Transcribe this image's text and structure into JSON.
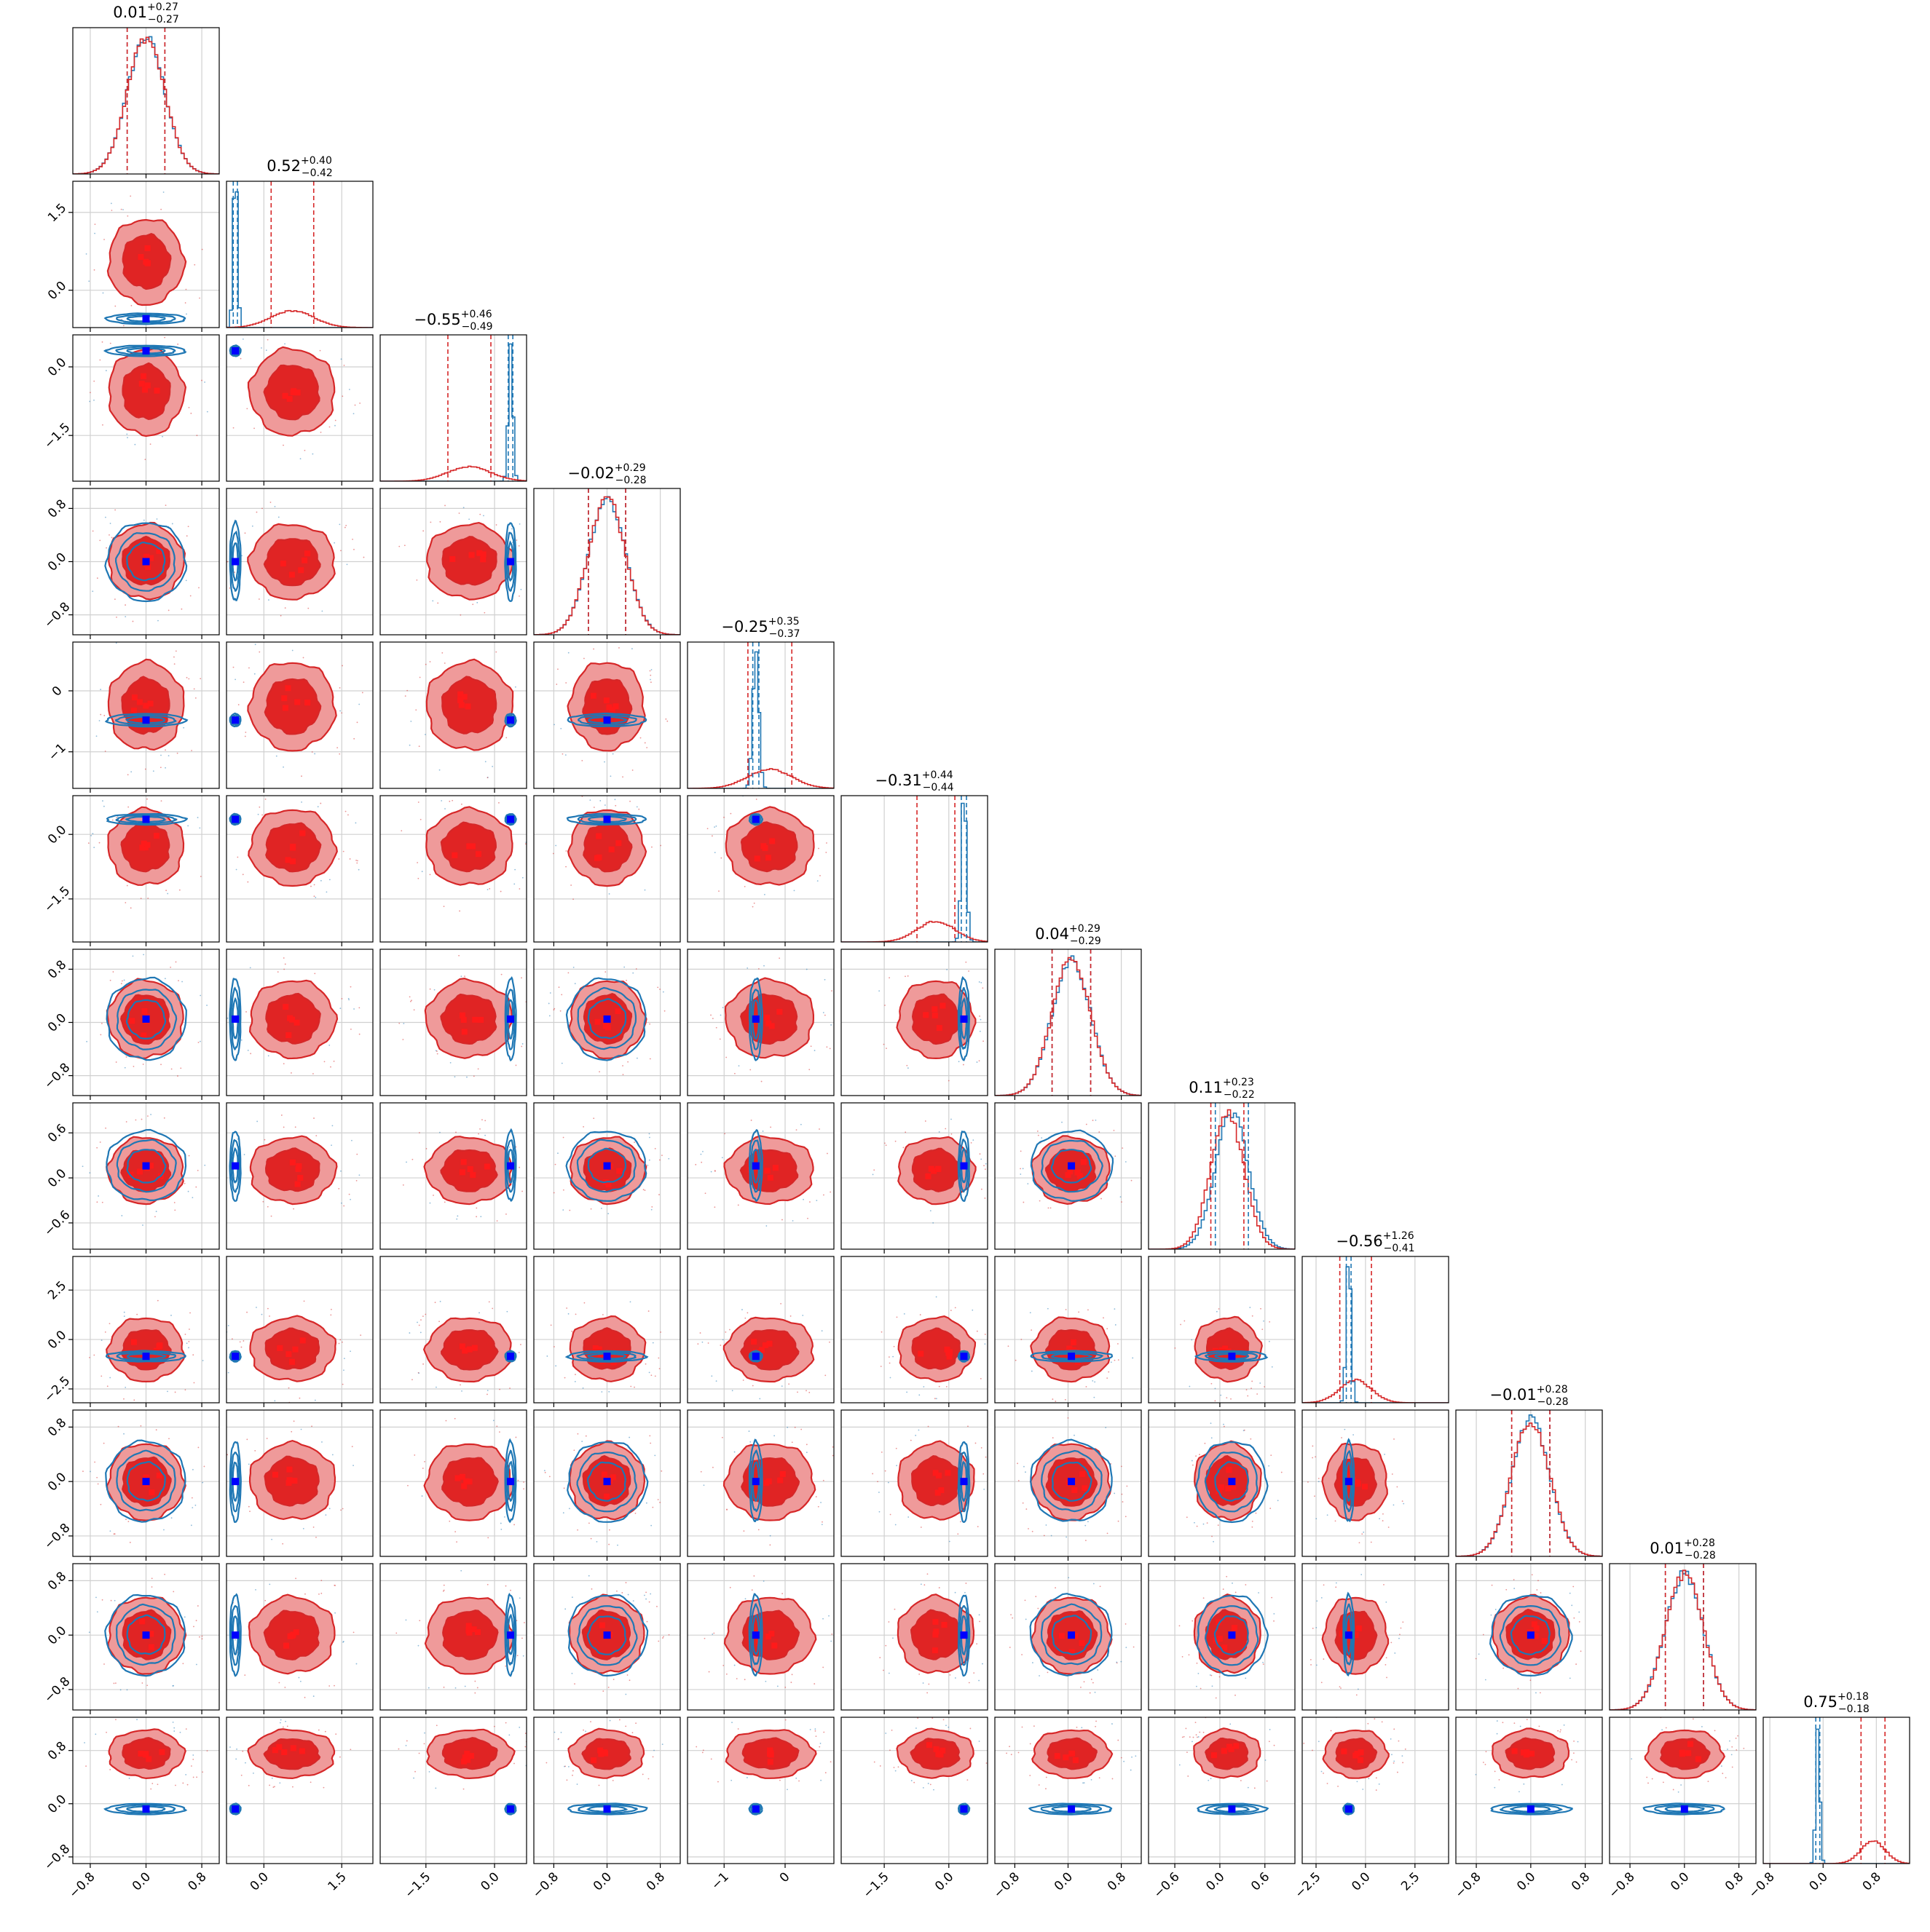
{
  "chart_data": {
    "type": "scatter",
    "subtype": "corner-plot",
    "n_params": 12,
    "colors": {
      "red": "#d62728",
      "red_fill_light": "#ef9a9a",
      "red_fill_dark": "#e02424",
      "blue": "#1f77b4",
      "truth_marker": "#0000ff",
      "grid": "#d0d0d0"
    },
    "series": [
      {
        "color": "red",
        "style": "filled contours + step histogram"
      },
      {
        "color": "blue",
        "style": "line contours + step histogram"
      }
    ],
    "params": [
      {
        "index": 1,
        "title_median": "0.01",
        "title_plus": "+0.27",
        "title_minus": "−0.27",
        "ticks": [
          "−0.8",
          "0.0",
          "0.8"
        ],
        "xlim": [
          -1.05,
          1.05
        ]
      },
      {
        "index": 2,
        "title_median": "0.52",
        "title_plus": "+0.40",
        "title_minus": "−0.42",
        "ticks": [
          "0.0",
          "1.5"
        ],
        "yticks": [
          "1.5",
          "0.0"
        ],
        "xlim": [
          -0.72,
          2.1
        ]
      },
      {
        "index": 3,
        "title_median": "−0.55",
        "title_plus": "+0.46",
        "title_minus": "−0.49",
        "ticks": [
          "−1.5",
          "0.0"
        ],
        "xlim": [
          -2.5,
          0.7
        ]
      },
      {
        "index": 4,
        "title_median": "−0.02",
        "title_plus": "+0.29",
        "title_minus": "−0.28",
        "ticks": [
          "−0.8",
          "0.0",
          "0.8"
        ],
        "xlim": [
          -1.1,
          1.1
        ]
      },
      {
        "index": 5,
        "title_median": "−0.25",
        "title_plus": "+0.35",
        "title_minus": "−0.37",
        "ticks": [
          "−1",
          "0"
        ],
        "yticks": [
          "0",
          "−1"
        ],
        "xlim": [
          -1.6,
          0.8
        ]
      },
      {
        "index": 6,
        "title_median": "−0.31",
        "title_plus": "+0.44",
        "title_minus": "−0.44",
        "ticks": [
          "−1.5",
          "0.0"
        ],
        "xlim": [
          -2.5,
          0.9
        ]
      },
      {
        "index": 7,
        "title_median": "0.04",
        "title_plus": "+0.29",
        "title_minus": "−0.29",
        "ticks": [
          "−0.8",
          "0.0",
          "0.8"
        ],
        "xlim": [
          -1.1,
          1.1
        ]
      },
      {
        "index": 8,
        "title_median": "0.11",
        "title_plus": "+0.23",
        "title_minus": "−0.22",
        "ticks": [
          "−0.6",
          "0.0",
          "0.6"
        ],
        "xlim": [
          -0.95,
          1.0
        ]
      },
      {
        "index": 9,
        "title_median": "−0.56",
        "title_plus": "+1.26",
        "title_minus": "−0.41",
        "ticks": [
          "−2.5",
          "0.0",
          "2.5"
        ],
        "xlim": [
          -3.2,
          4.2
        ]
      },
      {
        "index": 10,
        "title_median": "−0.01",
        "title_plus": "+0.28",
        "title_minus": "−0.28",
        "ticks": [
          "−0.8",
          "0.0",
          "0.8"
        ],
        "xlim": [
          -1.1,
          1.05
        ]
      },
      {
        "index": 11,
        "title_median": "0.01",
        "title_plus": "+0.28",
        "title_minus": "−0.28",
        "ticks": [
          "−0.8",
          "0.0",
          "0.8"
        ],
        "xlim": [
          -1.1,
          1.05
        ]
      },
      {
        "index": 12,
        "title_median": "0.75",
        "title_plus": "+0.18",
        "title_minus": "−0.18",
        "ticks": [
          "−0.8",
          "0.0",
          "0.8"
        ],
        "xlim": [
          -0.9,
          1.3
        ]
      }
    ],
    "red_centers": [
      0.0,
      0.55,
      -0.55,
      0.0,
      -0.25,
      -0.3,
      0.05,
      0.1,
      -0.5,
      0.0,
      0.0,
      0.75
    ],
    "red_sigmas": [
      0.27,
      0.41,
      0.47,
      0.28,
      0.36,
      0.44,
      0.29,
      0.22,
      0.8,
      0.28,
      0.28,
      0.18
    ],
    "blue_centers": [
      0.0,
      -0.55,
      0.35,
      0.0,
      -0.48,
      0.35,
      0.05,
      0.16,
      -0.85,
      0.0,
      0.0,
      -0.08
    ],
    "blue_sigmas": [
      0.27,
      0.04,
      0.05,
      0.28,
      0.05,
      0.06,
      0.29,
      0.22,
      0.12,
      0.28,
      0.28,
      0.03
    ],
    "truths": [
      0.0,
      -0.55,
      0.35,
      0.0,
      -0.48,
      0.35,
      0.05,
      0.16,
      -0.85,
      0.0,
      0.0,
      -0.08
    ],
    "grid": true
  }
}
